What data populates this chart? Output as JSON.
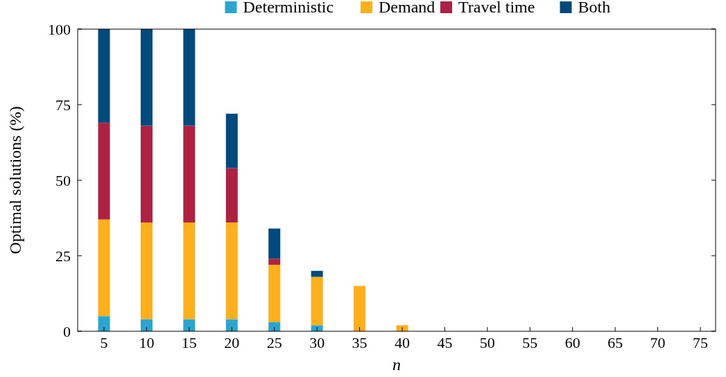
{
  "chart_data": {
    "type": "bar",
    "stacked": true,
    "xlabel": "n",
    "ylabel": "Optimal solutions (%)",
    "categories": [
      "5",
      "10",
      "15",
      "20",
      "25",
      "30",
      "35",
      "40",
      "45",
      "50",
      "55",
      "60",
      "65",
      "70",
      "75"
    ],
    "series": [
      {
        "name": "Deterministic",
        "color": "#29a5d0",
        "values": [
          5,
          4,
          4,
          4,
          3,
          2,
          0,
          0,
          0,
          0,
          0,
          0,
          0,
          0,
          0
        ]
      },
      {
        "name": "Demand",
        "color": "#fdaf1c",
        "values": [
          32,
          32,
          32,
          32,
          19,
          16,
          15,
          2,
          0,
          0,
          0,
          0,
          0,
          0,
          0
        ]
      },
      {
        "name": "Travel time",
        "color": "#af2142",
        "values": [
          32,
          32,
          32,
          18,
          2,
          0,
          0,
          0,
          0,
          0,
          0,
          0,
          0,
          0,
          0
        ]
      },
      {
        "name": "Both",
        "color": "#034a7c",
        "values": [
          31,
          32,
          32,
          18,
          10,
          2,
          0,
          0,
          0,
          0,
          0,
          0,
          0,
          0,
          0
        ]
      }
    ],
    "ylim": [
      0,
      100
    ],
    "yticks": [
      0,
      25,
      50,
      75,
      100
    ],
    "legend": "top"
  }
}
